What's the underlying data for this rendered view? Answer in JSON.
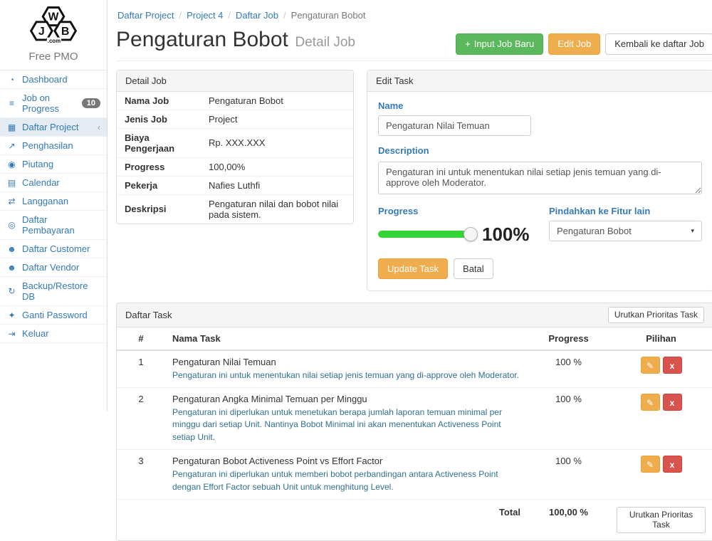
{
  "colors": {
    "link_blue": "#337ab7",
    "success_green": "#5cb85c",
    "warning_orange": "#f0ad4e",
    "danger_red": "#d9534f",
    "slider_green": "#35d435",
    "task_desc_blue": "#31708f"
  },
  "logo": {
    "letters": [
      "J",
      "W",
      "B"
    ],
    "dot_com": ".com",
    "app_name": "Free PMO"
  },
  "sidebar": {
    "items": [
      {
        "icon": "◔",
        "label": "Dashboard"
      },
      {
        "icon": "≡",
        "label": "Job on Progress",
        "badge": "10"
      },
      {
        "icon": "▦",
        "label": "Daftar Project",
        "chevron": "‹"
      },
      {
        "icon": "↗",
        "label": "Penghasilan"
      },
      {
        "icon": "◉",
        "label": "Piutang"
      },
      {
        "icon": "▤",
        "label": "Calendar"
      },
      {
        "icon": "⇄",
        "label": "Langganan"
      },
      {
        "icon": "◎",
        "label": "Daftar Pembayaran"
      },
      {
        "icon": "☻",
        "label": "Daftar Customer"
      },
      {
        "icon": "☻",
        "label": "Daftar Vendor"
      },
      {
        "icon": "↻",
        "label": "Backup/Restore DB"
      },
      {
        "icon": "✦",
        "label": "Ganti Password"
      },
      {
        "icon": "⇥",
        "label": "Keluar"
      }
    ]
  },
  "breadcrumb": {
    "links": [
      "Daftar Project",
      "Project 4",
      "Daftar Job"
    ],
    "current": "Pengaturan Bobot"
  },
  "header": {
    "title": "Pengaturan Bobot",
    "subtitle": "Detail Job",
    "new_job_icon": "+",
    "new_job_label": "Input Job Baru",
    "edit_job_label": "Edit Job",
    "back_label": "Kembali ke daftar Job"
  },
  "detail_job": {
    "title": "Detail Job",
    "rows": [
      {
        "label": "Nama Job",
        "value": "Pengaturan Bobot"
      },
      {
        "label": "Jenis Job",
        "value": "Project"
      },
      {
        "label": "Biaya Pengerjaan",
        "value": "Rp. XXX.XXX"
      },
      {
        "label": "Progress",
        "value": "100,00%"
      },
      {
        "label": "Pekerja",
        "value": "Nafies Luthfi"
      },
      {
        "label": "Deskripsi",
        "value": "Pengaturan nilai dan bobot nilai pada sistem."
      }
    ]
  },
  "edit_task": {
    "title": "Edit Task",
    "name_label": "Name",
    "name_value": "Pengaturan Nilai Temuan",
    "description_label": "Description",
    "description_value": "Pengaturan ini untuk menentukan nilai setiap jenis temuan yang di-approve oleh Moderator.",
    "progress_label": "Progress",
    "progress_percent": 100,
    "progress_display": "100%",
    "move_label": "Pindahkan ke Fitur lain",
    "move_value": "Pengaturan Bobot",
    "move_caret": "▾",
    "update_label": "Update Task",
    "cancel_label": "Batal"
  },
  "task_list": {
    "title": "Daftar Task",
    "sort_button_label": "Urutkan Prioritas Task",
    "columns": [
      "#",
      "Nama Task",
      "Progress",
      "Pilihan"
    ],
    "edit_icon": "✎",
    "delete_icon": "x",
    "rows": [
      {
        "no": "1",
        "name": "Pengaturan Nilai Temuan",
        "description": "Pengaturan ini untuk menentukan nilai setiap jenis temuan yang di-approve oleh Moderator.",
        "progress": "100 %"
      },
      {
        "no": "2",
        "name": "Pengaturan Angka Minimal Temuan per Minggu",
        "description": "Pengaturan ini diperlukan untuk menetukan berapa jumlah laporan temuan minimal per minggu dari setiap Unit. Nantinya Bobot Minimal ini akan menentukan Activeness Point setiap Unit.",
        "progress": "100 %"
      },
      {
        "no": "3",
        "name": "Pengaturan Bobot Activeness Point vs Effort Factor",
        "description": "Pengaturan ini diperlukan untuk memberi bobot perbandingan antara Activeness Point dengan Effort Factor sebuah Unit untuk menghitung Level.",
        "progress": "100 %"
      }
    ],
    "total_label": "Total",
    "total_value": "100,00 %",
    "footer_sort_button_label": "Urutkan Prioritas Task"
  }
}
